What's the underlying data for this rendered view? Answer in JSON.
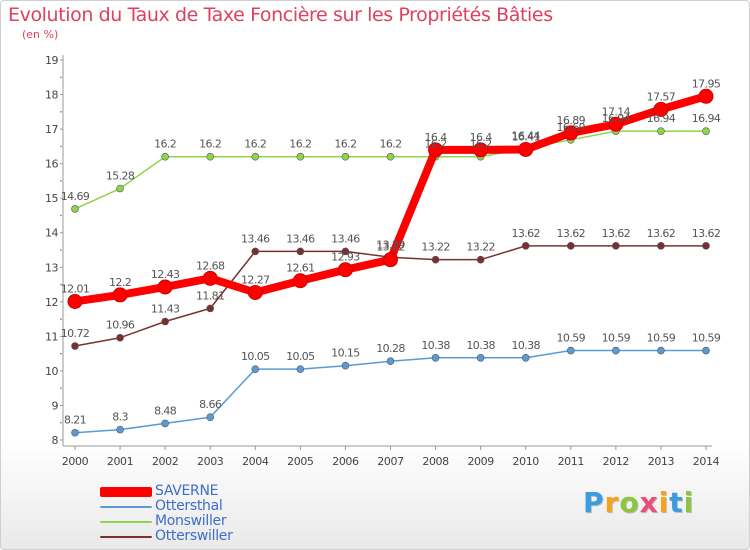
{
  "chart_data": {
    "type": "line",
    "title": "Evolution du Taux de Taxe Foncière sur les Propriétés Bâties",
    "subtitle": "(en %)",
    "x": [
      "2000",
      "2001",
      "2002",
      "2003",
      "2004",
      "2005",
      "2006",
      "2007",
      "2008",
      "2009",
      "2010",
      "2011",
      "2012",
      "2013",
      "2014"
    ],
    "yticks": [
      "8",
      "9",
      "10",
      "11",
      "12",
      "13",
      "14",
      "15",
      "16",
      "17",
      "18",
      "19"
    ],
    "ylim": [
      8,
      19
    ],
    "grid": false,
    "legend_position": "bottom-left",
    "series": [
      {
        "name": "SAVERNE",
        "color": "#ff0000",
        "values": [
          12.01,
          12.2,
          12.43,
          12.68,
          12.27,
          12.61,
          12.93,
          13.22,
          16.4,
          16.4,
          16.41,
          16.89,
          17.14,
          17.57,
          17.95
        ],
        "labels": [
          "12.01",
          "12.2",
          "12.43",
          "12.68",
          "12.27",
          "12.61",
          "12.93",
          "13.22",
          "16.4",
          "16.4",
          "16.41",
          "16.89",
          "17.14",
          "17.57",
          "17.95"
        ]
      },
      {
        "name": "Ottersthal",
        "color": "#5b9bd5",
        "values": [
          8.21,
          8.3,
          8.48,
          8.66,
          10.05,
          10.05,
          10.15,
          10.28,
          10.38,
          10.38,
          10.38,
          10.59,
          10.59,
          10.59,
          10.59
        ],
        "labels": [
          "8.21",
          "8.3",
          "8.48",
          "8.66",
          "10.05",
          "10.05",
          "10.15",
          "10.28",
          "10.38",
          "10.38",
          "10.38",
          "10.59",
          "10.59",
          "10.59",
          "10.59"
        ]
      },
      {
        "name": "Monswiller",
        "color": "#8fd44b",
        "values": [
          14.69,
          15.28,
          16.2,
          16.2,
          16.2,
          16.2,
          16.2,
          16.2,
          16.2,
          16.2,
          16.44,
          16.69,
          16.94,
          16.94,
          16.94
        ],
        "labels": [
          "14.69",
          "15.28",
          "16.2",
          "16.2",
          "16.2",
          "16.2",
          "16.2",
          "16.2",
          "16.2",
          "16.2",
          "16.44",
          "16.69",
          "16.94",
          "16.94",
          "16.94"
        ]
      },
      {
        "name": "Otterswiller",
        "color": "#7a3030",
        "values": [
          10.72,
          10.96,
          11.43,
          11.81,
          13.46,
          13.46,
          13.46,
          13.29,
          13.22,
          13.22,
          13.62,
          13.62,
          13.62,
          13.62,
          13.62
        ],
        "labels": [
          "10.72",
          "10.96",
          "11.43",
          "11.81",
          "13.46",
          "13.46",
          "13.46",
          "13.29",
          "13.22",
          "13.22",
          "13.62",
          "13.62",
          "13.62",
          "13.62",
          "13.62"
        ]
      }
    ]
  },
  "logo": {
    "letters": [
      "P",
      "r",
      "o",
      "x",
      "i",
      "t",
      "i"
    ],
    "colors": [
      "#3a9de0",
      "#f7a21b",
      "#8cc63f",
      "#e94e77",
      "#f7a21b",
      "#3a9de0",
      "#8cc63f"
    ]
  }
}
